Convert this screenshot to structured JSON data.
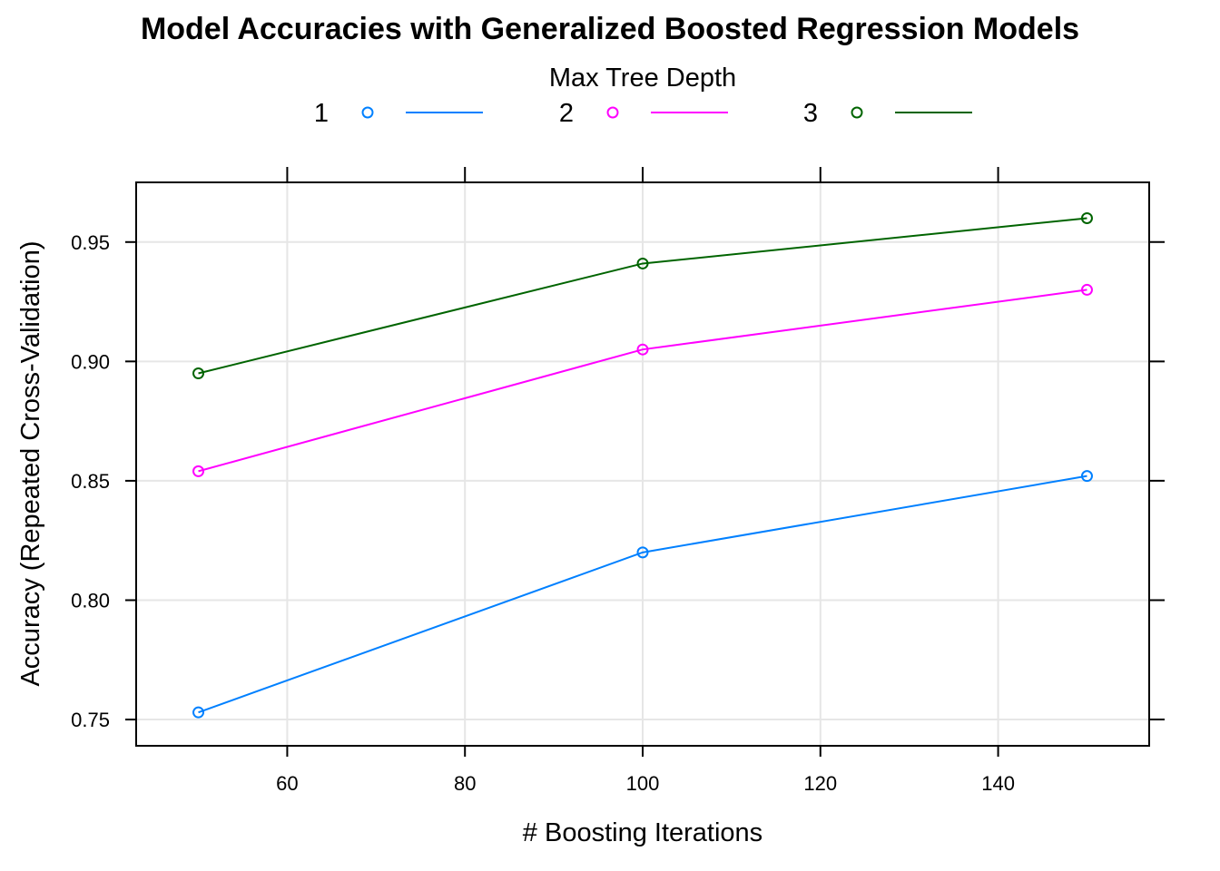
{
  "chart_data": {
    "type": "line",
    "title": "Model Accuracies with Generalized Boosted Regression Models",
    "xlabel": "# Boosting Iterations",
    "ylabel": "Accuracy (Repeated Cross-Validation)",
    "legend": {
      "title": "Max Tree Depth",
      "placement": "top"
    },
    "x": [
      50,
      100,
      150
    ],
    "x_ticks": [
      60,
      80,
      100,
      120,
      140
    ],
    "x_tick_labels": [
      "60",
      "80",
      "100",
      "120",
      "140"
    ],
    "y_ticks": [
      0.75,
      0.8,
      0.85,
      0.9,
      0.95
    ],
    "y_tick_labels": [
      "0.75",
      "0.80",
      "0.85",
      "0.90",
      "0.95"
    ],
    "xlim": [
      43,
      157
    ],
    "ylim": [
      0.739,
      0.975
    ],
    "grid": true,
    "series": [
      {
        "name": "1",
        "color": "#0080ff",
        "values": [
          0.753,
          0.82,
          0.852
        ]
      },
      {
        "name": "2",
        "color": "#ff00ff",
        "values": [
          0.854,
          0.905,
          0.93
        ]
      },
      {
        "name": "3",
        "color": "#006400",
        "values": [
          0.895,
          0.941,
          0.96
        ]
      }
    ]
  }
}
